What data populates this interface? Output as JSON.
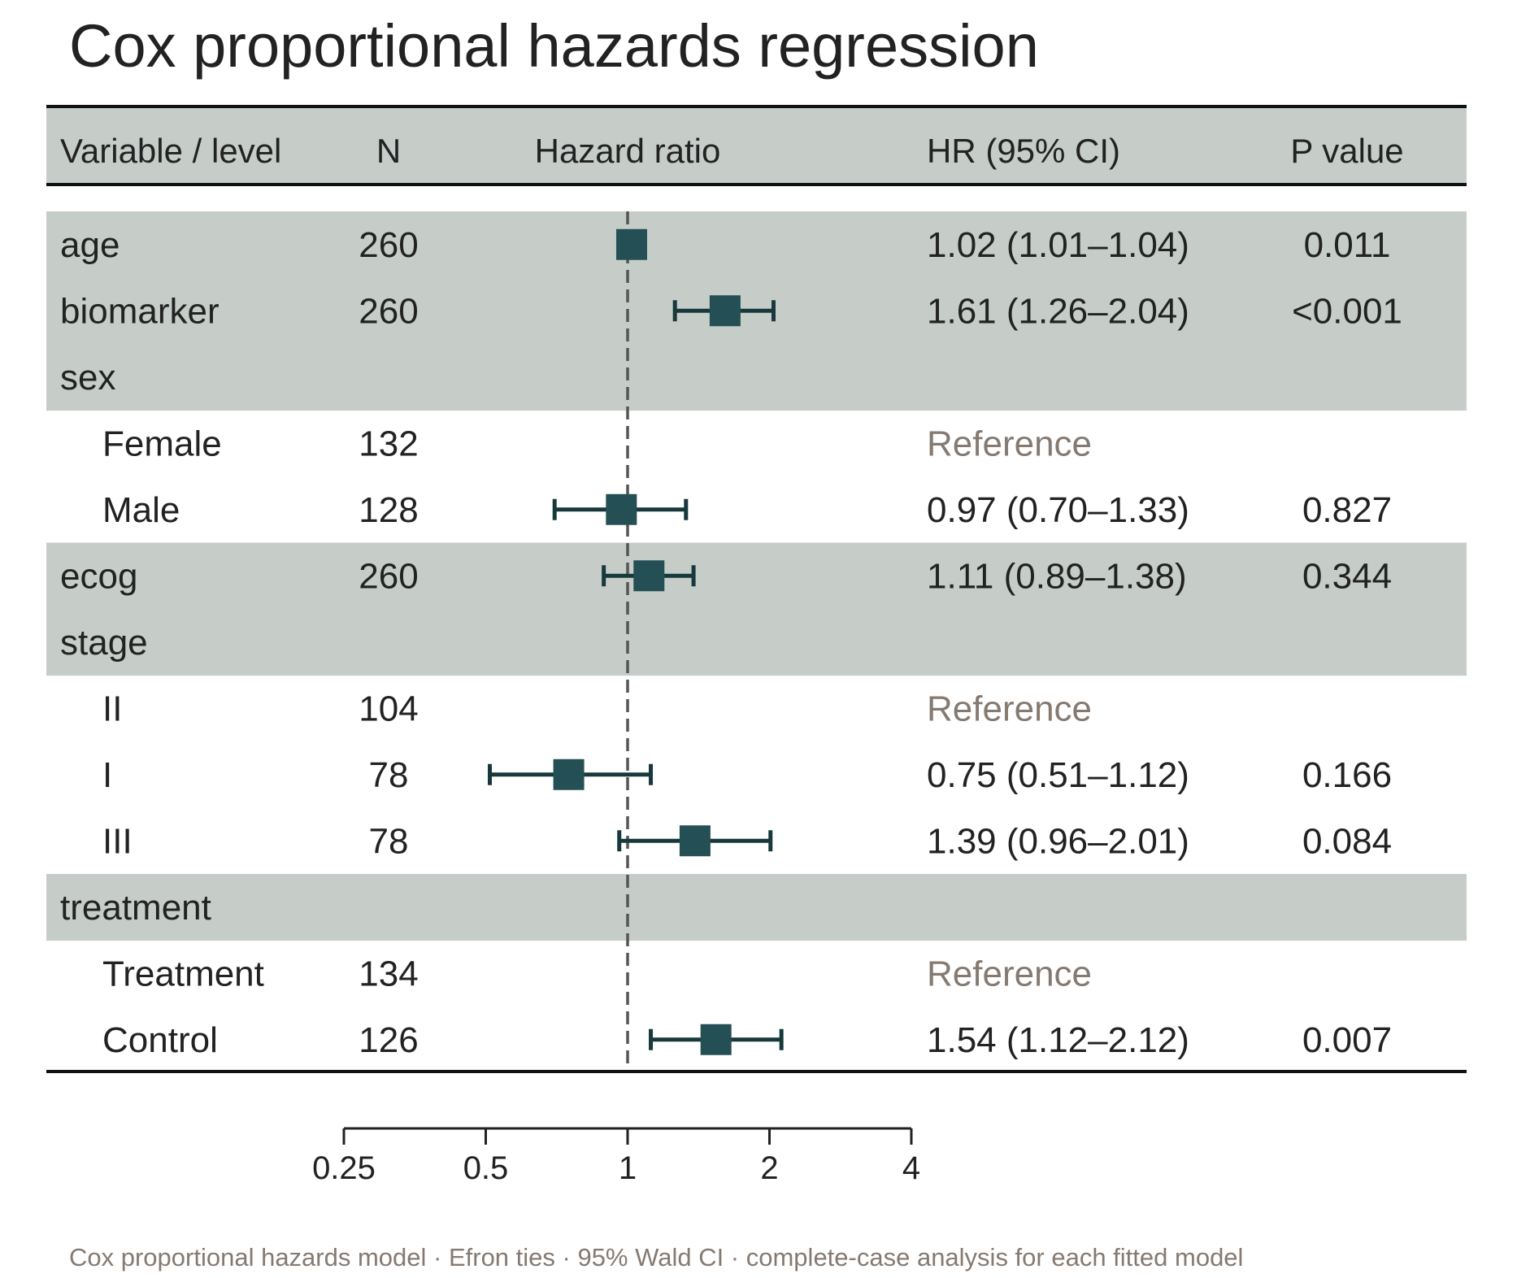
{
  "chart_data": {
    "type": "forest",
    "title": "Cox proportional hazards regression",
    "columns": {
      "variable": "Variable / level",
      "n": "N",
      "plot": "Hazard ratio",
      "hr_ci": "HR (95% CI)",
      "p": "P value"
    },
    "x_scale": "log2",
    "xlim": [
      0.25,
      4
    ],
    "x_ticks": [
      0.25,
      0.5,
      1,
      2,
      4
    ],
    "x_tick_labels": [
      "0.25",
      "0.5",
      "1",
      "2",
      "4"
    ],
    "reference_line": 1,
    "rows": [
      {
        "label": "age",
        "level": false,
        "shaded": true,
        "n": "260",
        "hr": 1.02,
        "lo": 1.01,
        "hi": 1.04,
        "hr_text": "1.02 (1.01–1.04)",
        "p": "0.011"
      },
      {
        "label": "biomarker",
        "level": false,
        "shaded": true,
        "n": "260",
        "hr": 1.61,
        "lo": 1.26,
        "hi": 2.04,
        "hr_text": "1.61 (1.26–2.04)",
        "p": "<0.001"
      },
      {
        "label": "sex",
        "level": false,
        "shaded": true,
        "n": "",
        "hr_text": "",
        "p": ""
      },
      {
        "label": "Female",
        "level": true,
        "shaded": false,
        "n": "132",
        "is_reference": true,
        "hr_text": "Reference",
        "p": ""
      },
      {
        "label": "Male",
        "level": true,
        "shaded": false,
        "n": "128",
        "hr": 0.97,
        "lo": 0.7,
        "hi": 1.33,
        "hr_text": "0.97 (0.70–1.33)",
        "p": "0.827"
      },
      {
        "label": "ecog",
        "level": false,
        "shaded": true,
        "n": "260",
        "hr": 1.11,
        "lo": 0.89,
        "hi": 1.38,
        "hr_text": "1.11 (0.89–1.38)",
        "p": "0.344"
      },
      {
        "label": "stage",
        "level": false,
        "shaded": true,
        "n": "",
        "hr_text": "",
        "p": ""
      },
      {
        "label": "II",
        "level": true,
        "shaded": false,
        "n": "104",
        "is_reference": true,
        "hr_text": "Reference",
        "p": ""
      },
      {
        "label": "I",
        "level": true,
        "shaded": false,
        "n": "78",
        "hr": 0.75,
        "lo": 0.51,
        "hi": 1.12,
        "hr_text": "0.75 (0.51–1.12)",
        "p": "0.166"
      },
      {
        "label": "III",
        "level": true,
        "shaded": false,
        "n": "78",
        "hr": 1.39,
        "lo": 0.96,
        "hi": 2.01,
        "hr_text": "1.39 (0.96–2.01)",
        "p": "0.084"
      },
      {
        "label": "treatment",
        "level": false,
        "shaded": true,
        "n": "",
        "hr_text": "",
        "p": ""
      },
      {
        "label": "Treatment",
        "level": true,
        "shaded": false,
        "n": "134",
        "is_reference": true,
        "hr_text": "Reference",
        "p": ""
      },
      {
        "label": "Control",
        "level": true,
        "shaded": false,
        "n": "126",
        "hr": 1.54,
        "lo": 1.12,
        "hi": 2.12,
        "hr_text": "1.54 (1.12–2.12)",
        "p": "0.007"
      }
    ],
    "footnote": "Cox proportional hazards model · Efron ties · 95% Wald CI · complete-case analysis for each fitted model",
    "colors": {
      "header_band": "#c6cdc9",
      "row_band": "#c6cdc9",
      "marker": "#244f55",
      "whisker": "#17393c",
      "reference_text": "#857a72",
      "reference_line": "#555555"
    }
  }
}
